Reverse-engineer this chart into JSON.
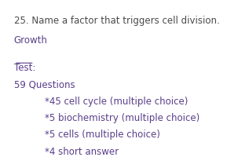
{
  "background_color": "#ffffff",
  "line1": "25. Name a factor that triggers cell division.",
  "line2": "Growth",
  "line3": "Test:",
  "line4": "59 Questions",
  "line5": "*45 cell cycle (multiple choice)",
  "line6": "*5 biochemistry (multiple choice)",
  "line7": "*5 cells (multiple choice)",
  "line8": "*4 short answer",
  "text_color_dark": "#4a4a4a",
  "text_color_purple": "#5a3e8a",
  "font_size": 8.5,
  "indent": 0.18
}
